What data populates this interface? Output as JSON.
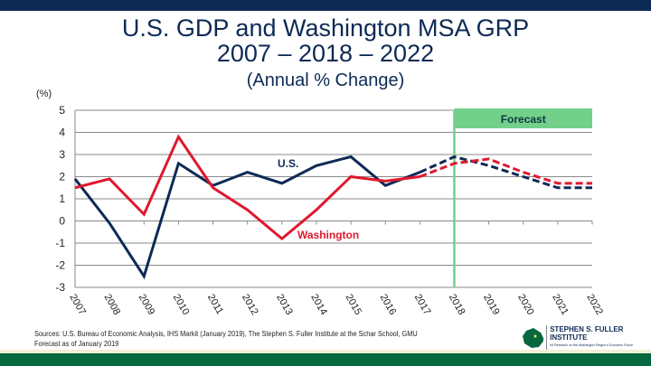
{
  "title": {
    "line1": "U.S. GDP and Washington MSA GRP",
    "line2": "2007 – 2018 – 2022",
    "line3": "(Annual % Change)"
  },
  "footer": {
    "sources": "Sources: U.S. Bureau of Economic Analysis, IHS Markit (January 2019), The Stephen S. Fuller Institute at the Schar School, GMU",
    "forecast_note": "Forecast as of January 2019",
    "logo": "The STEPHEN S. FULLER INSTITUTE for Research on the Washington Region's Economic Future"
  },
  "colors": {
    "us": "#0d2a55",
    "washington": "#e0182d",
    "forecast": "#72d08a",
    "footer": "#07683f"
  },
  "chart_data": {
    "type": "line",
    "ylabel": "(%)",
    "ylim": [
      -3,
      5
    ],
    "yticks": [
      5,
      4,
      3,
      2,
      1,
      0,
      -1,
      -2,
      -3
    ],
    "grid": true,
    "x": [
      "2007",
      "2008",
      "2009",
      "2010",
      "2011",
      "2012",
      "2013",
      "2014",
      "2015",
      "2016",
      "2017",
      "2018",
      "2019",
      "2020",
      "2021",
      "2022"
    ],
    "forecast_label": "Forecast",
    "forecast_start": "2018",
    "series": [
      {
        "name": "U.S.",
        "values": [
          1.9,
          -0.1,
          -2.5,
          2.6,
          1.6,
          2.2,
          1.7,
          2.5,
          2.9,
          1.6,
          2.2,
          2.9,
          2.5,
          2.0,
          1.5,
          1.5
        ]
      },
      {
        "name": "Washington",
        "values": [
          1.5,
          1.9,
          0.3,
          3.8,
          1.5,
          0.5,
          -0.8,
          0.5,
          2.0,
          1.8,
          2.0,
          2.6,
          2.8,
          2.2,
          1.7,
          1.7
        ]
      }
    ]
  }
}
